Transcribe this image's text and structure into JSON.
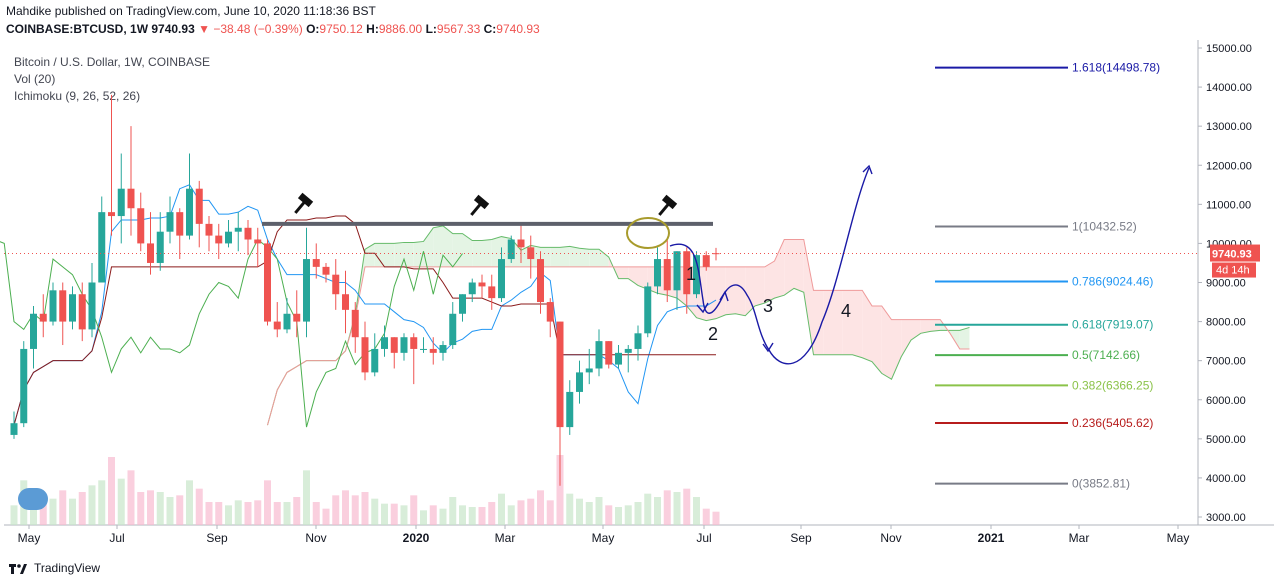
{
  "header": {
    "publisher_line": "Mahdike published on TradingView.com, June 10, 2020 11:18:36 BST",
    "symbol": "COINBASE:BTCUSD,",
    "timeframe": "1W",
    "last": "9740.93",
    "change_arrow": "▼",
    "change": "−38.48 (−0.39%)",
    "o_label": "O:",
    "o_value": "9750.12",
    "h_label": "H:",
    "h_value": "9886.00",
    "l_label": "L:",
    "l_value": "9567.33",
    "c_label": "C:",
    "c_value": "9740.93"
  },
  "legend": {
    "title": "Bitcoin / U.S. Dollar, 1W, COINBASE",
    "vol": "Vol (20)",
    "ichimoku": "Ichimoku (9, 26, 52, 26)"
  },
  "footer": {
    "brand": "TradingView"
  },
  "colors": {
    "up": "#26a69a",
    "down": "#ef5350",
    "cloud_red": "#fde4e4",
    "cloud_green": "#e4f4e4",
    "tenkan": "#2196f3",
    "kijun": "#8b1a1a",
    "chikou": "#4caf50",
    "drawing": "#1a1aa6"
  },
  "chart_data": {
    "type": "candlestick",
    "y_axis": {
      "min": 3000,
      "max": 15000,
      "ticks": [
        "15000.00",
        "14000.00",
        "13000.00",
        "12000.00",
        "11000.00",
        "10000.00",
        "9000.00",
        "8000.00",
        "7000.00",
        "6000.00",
        "5000.00",
        "4000.00",
        "3000.00"
      ]
    },
    "last_price_label": "9740.93",
    "countdown_label": "4d 14h",
    "x_axis_labels": [
      "May",
      "Jul",
      "Sep",
      "Nov",
      "2020",
      "Mar",
      "May",
      "Jul",
      "Sep",
      "Nov",
      "2021",
      "Mar",
      "May"
    ],
    "candles": [
      [
        5100,
        5400,
        5000,
        5700
      ],
      [
        5400,
        7300,
        5300,
        7500
      ],
      [
        7300,
        8200,
        6800,
        8400
      ],
      [
        8200,
        8000,
        7600,
        8700
      ],
      [
        8000,
        8800,
        7900,
        9000
      ],
      [
        8800,
        8000,
        7400,
        9000
      ],
      [
        8000,
        8700,
        7800,
        8900
      ],
      [
        8700,
        7800,
        7500,
        9000
      ],
      [
        7800,
        9000,
        7600,
        9500
      ],
      [
        9000,
        10800,
        9000,
        11200
      ],
      [
        10800,
        10700,
        10200,
        13800
      ],
      [
        10700,
        11400,
        10000,
        12300
      ],
      [
        11400,
        10900,
        10200,
        13000
      ],
      [
        10900,
        10000,
        9800,
        11300
      ],
      [
        10000,
        9500,
        9200,
        10800
      ],
      [
        9500,
        10300,
        9300,
        10800
      ],
      [
        10300,
        10800,
        10000,
        11200
      ],
      [
        10800,
        10200,
        9600,
        10900
      ],
      [
        10200,
        11400,
        10100,
        12300
      ],
      [
        11400,
        10500,
        9900,
        11600
      ],
      [
        10500,
        10200,
        9800,
        10700
      ],
      [
        10200,
        10000,
        9600,
        10500
      ],
      [
        10000,
        10300,
        9900,
        10600
      ],
      [
        10300,
        10400,
        9800,
        10800
      ],
      [
        10400,
        10100,
        9700,
        10600
      ],
      [
        10100,
        10000,
        9400,
        10400
      ],
      [
        10000,
        8000,
        7900,
        10100
      ],
      [
        8000,
        7800,
        7600,
        8500
      ],
      [
        7800,
        8200,
        7700,
        8600
      ],
      [
        8200,
        8000,
        7600,
        8800
      ],
      [
        8000,
        9600,
        7600,
        10400
      ],
      [
        9600,
        9400,
        9100,
        10000
      ],
      [
        9400,
        9200,
        9000,
        9500
      ],
      [
        9200,
        8700,
        8300,
        9600
      ],
      [
        8700,
        8300,
        7700,
        9300
      ],
      [
        8300,
        7600,
        7200,
        8500
      ],
      [
        7600,
        6700,
        6500,
        8000
      ],
      [
        6700,
        7300,
        6600,
        7700
      ],
      [
        7300,
        7600,
        7100,
        7900
      ],
      [
        7600,
        7200,
        6800,
        7600
      ],
      [
        7200,
        7600,
        7000,
        7700
      ],
      [
        7600,
        7300,
        6400,
        7700
      ],
      [
        7300,
        7300,
        7200,
        7600
      ],
      [
        7300,
        7200,
        6900,
        7600
      ],
      [
        7200,
        7400,
        7000,
        7500
      ],
      [
        7400,
        8200,
        7300,
        8500
      ],
      [
        8200,
        8700,
        8000,
        8700
      ],
      [
        8700,
        9000,
        8500,
        9100
      ],
      [
        9000,
        8900,
        8600,
        9200
      ],
      [
        8900,
        8600,
        8300,
        9200
      ],
      [
        8600,
        9600,
        8500,
        9900
      ],
      [
        9600,
        10100,
        9500,
        10200
      ],
      [
        10100,
        9900,
        9500,
        10500
      ],
      [
        9900,
        9600,
        9100,
        10200
      ],
      [
        9600,
        8500,
        8200,
        9800
      ],
      [
        8500,
        8000,
        7600,
        8600
      ],
      [
        8000,
        5300,
        3800,
        8000
      ],
      [
        5300,
        6200,
        5100,
        6500
      ],
      [
        6200,
        6700,
        5900,
        7000
      ],
      [
        6700,
        6800,
        6400,
        7300
      ],
      [
        6800,
        7500,
        6600,
        7800
      ],
      [
        7500,
        6900,
        6800,
        7500
      ],
      [
        6900,
        7200,
        6800,
        7400
      ],
      [
        7200,
        7300,
        6700,
        7400
      ],
      [
        7300,
        7700,
        7000,
        7900
      ],
      [
        7700,
        8900,
        7600,
        9000
      ],
      [
        8900,
        9600,
        8700,
        9900
      ],
      [
        9600,
        8800,
        8500,
        10100
      ],
      [
        8800,
        9800,
        8300,
        9800
      ],
      [
        9800,
        8700,
        8200,
        9900
      ],
      [
        8700,
        9700,
        8600,
        9800
      ],
      [
        9700,
        9400,
        9300,
        9800
      ],
      [
        9750,
        9741,
        9567,
        9886
      ]
    ],
    "fib_levels": [
      {
        "label": "1.618(14498.78)",
        "price": 14498.78,
        "color": "#1a1aa6"
      },
      {
        "label": "1(10432.52)",
        "price": 10432.52,
        "color": "#787b86"
      },
      {
        "label": "0.786(9024.46)",
        "price": 9024.46,
        "color": "#2196f3"
      },
      {
        "label": "0.618(7919.07)",
        "price": 7919.07,
        "color": "#26a69a"
      },
      {
        "label": "0.5(7142.66)",
        "price": 7142.66,
        "color": "#4caf50"
      },
      {
        "label": "0.382(6366.25)",
        "price": 6366.25,
        "color": "#8bc34a"
      },
      {
        "label": "0.236(5405.62)",
        "price": 5405.62,
        "color": "#b71c1c"
      },
      {
        "label": "0(3852.81)",
        "price": 3852.81,
        "color": "#787b86"
      }
    ],
    "annotations": [
      "1",
      "2",
      "3",
      "4"
    ],
    "resistance_price": 10500
  }
}
